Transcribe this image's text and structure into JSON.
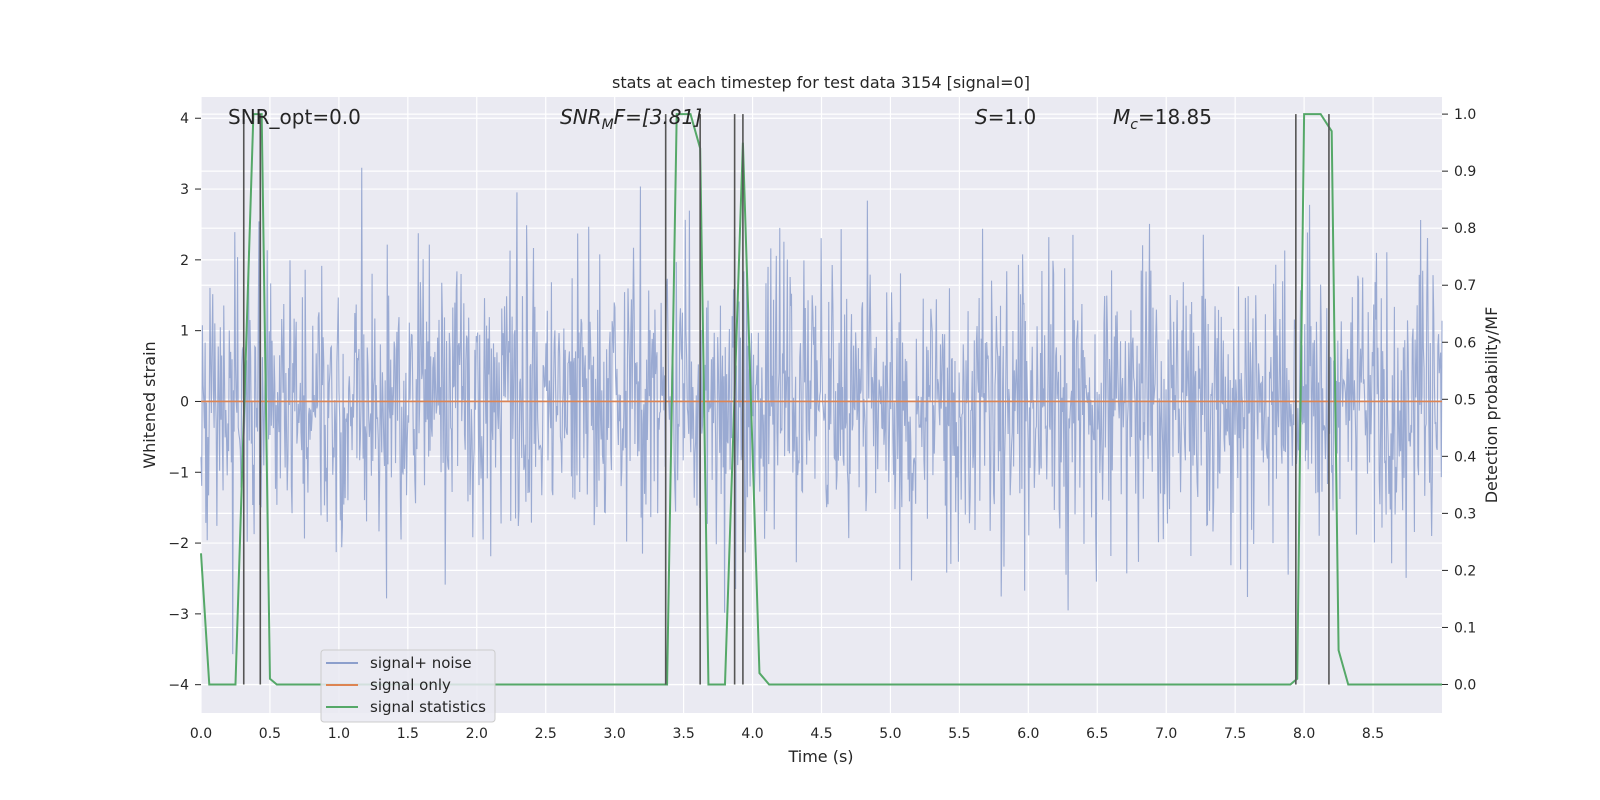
{
  "chart_data": {
    "type": "line",
    "title": "stats at each timestep for test data 3154 [signal=0]",
    "xlabel": "Time (s)",
    "ylabel_left": "Whitened strain",
    "ylabel_right": "Detection probability/MF",
    "xlim": [
      0.0,
      9.0
    ],
    "ylim_left": [
      -4.4,
      4.3
    ],
    "ylim_right": [
      -0.05,
      1.03
    ],
    "x_ticks": [
      "0.0",
      "0.5",
      "1.0",
      "1.5",
      "2.0",
      "2.5",
      "3.0",
      "3.5",
      "4.0",
      "4.5",
      "5.0",
      "5.5",
      "6.0",
      "6.5",
      "7.0",
      "7.5",
      "8.0",
      "8.5"
    ],
    "x_tick_values": [
      0.0,
      0.5,
      1.0,
      1.5,
      2.0,
      2.5,
      3.0,
      3.5,
      4.0,
      4.5,
      5.0,
      5.5,
      6.0,
      6.5,
      7.0,
      7.5,
      8.0,
      8.5
    ],
    "y_left_ticks": [
      "−4",
      "−3",
      "−2",
      "−1",
      "0",
      "1",
      "2",
      "3",
      "4"
    ],
    "y_left_tick_values": [
      -4,
      -3,
      -2,
      -1,
      0,
      1,
      2,
      3,
      4
    ],
    "y_right_ticks": [
      "0.0",
      "0.1",
      "0.2",
      "0.3",
      "0.4",
      "0.5",
      "0.6",
      "0.7",
      "0.8",
      "0.9",
      "1.0"
    ],
    "y_right_tick_values": [
      0.0,
      0.1,
      0.2,
      0.3,
      0.4,
      0.5,
      0.6,
      0.7,
      0.8,
      0.9,
      1.0
    ],
    "annotations": {
      "snr_opt": "SNR_opt=0.0",
      "snr_mf_base": "SNR",
      "snr_mf_sub": "M",
      "snr_mf_rest": "F=[3.81]",
      "s_label": "S",
      "s_value": "=1.0",
      "mc_label": "M",
      "mc_sub": "c",
      "mc_value": "=18.85"
    },
    "legend": {
      "position": "lower-left",
      "entries": [
        {
          "label": "signal+ noise",
          "color": "#8c9fcc"
        },
        {
          "label": "signal only",
          "color": "#dd8452"
        },
        {
          "label": "signal statistics",
          "color": "#55a868"
        }
      ]
    },
    "series": [
      {
        "name": "signal+ noise",
        "axis": "left",
        "kind": "noise",
        "seed": 3154,
        "n_samples": 1800,
        "sigma": 1.0,
        "x_range": [
          0.0,
          9.0
        ],
        "color": "#8c9fcc"
      },
      {
        "name": "signal only",
        "axis": "left",
        "x": [
          0.0,
          9.0
        ],
        "values": [
          0.0,
          0.0
        ],
        "color": "#dd8452"
      },
      {
        "name": "signal statistics",
        "axis": "right",
        "x": [
          0.0,
          0.06,
          0.25,
          0.38,
          0.44,
          0.5,
          0.55,
          3.38,
          3.45,
          3.55,
          3.62,
          3.68,
          3.8,
          3.93,
          4.05,
          4.12,
          7.9,
          7.95,
          8.0,
          8.12,
          8.2,
          8.25,
          8.32,
          9.0
        ],
        "values": [
          0.23,
          0.0,
          0.0,
          1.0,
          1.0,
          0.01,
          0.0,
          0.0,
          1.0,
          1.0,
          0.94,
          0.0,
          0.0,
          0.95,
          0.02,
          0.0,
          0.0,
          0.01,
          1.0,
          1.0,
          0.97,
          0.06,
          0.0,
          0.0
        ],
        "color": "#55a868"
      }
    ],
    "vertical_markers": [
      0.31,
      0.43,
      3.37,
      3.62,
      3.87,
      3.93,
      7.94,
      8.18
    ],
    "marker_color": "#555555",
    "grid": true
  }
}
